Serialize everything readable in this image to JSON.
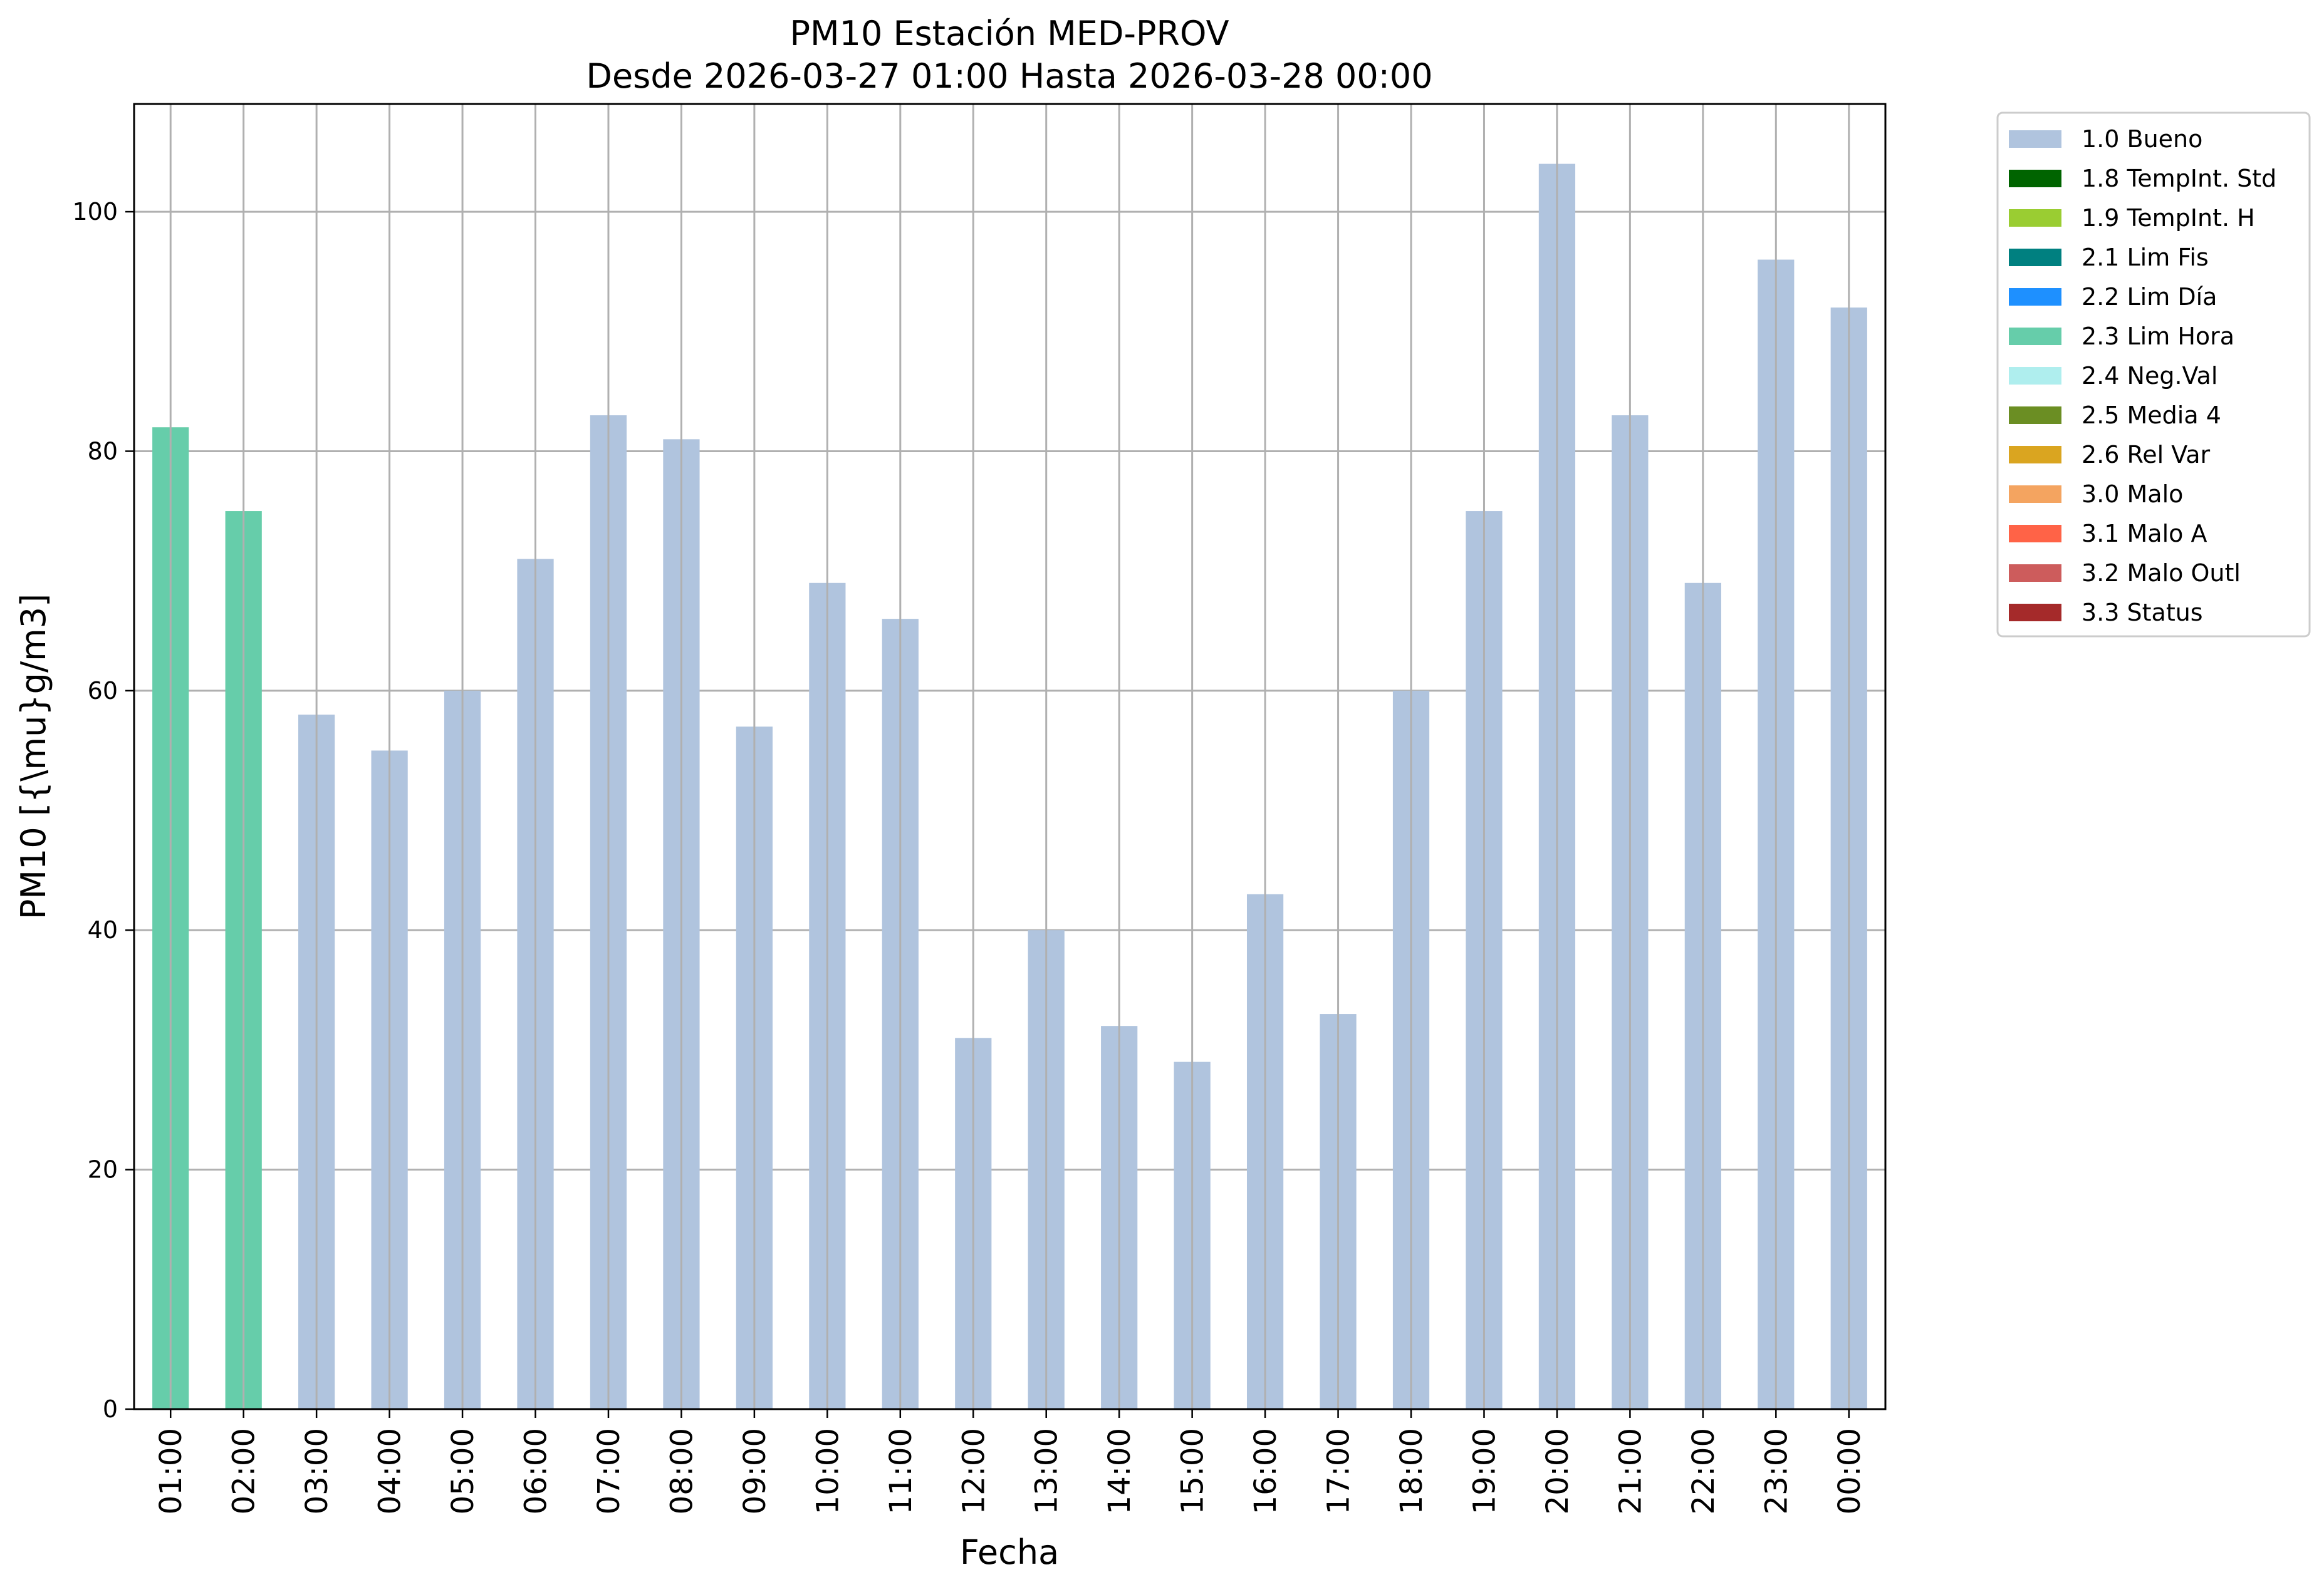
{
  "chart_data": {
    "type": "bar",
    "title": "PM10 Estación MED-PROV",
    "subtitle": "Desde 2026-03-27 01:00 Hasta 2026-03-28 00:00",
    "xlabel": "Fecha",
    "ylabel": "PM10 [{\\mu}g/m3]",
    "ylim": [
      0,
      109
    ],
    "yticks": [
      0,
      20,
      40,
      60,
      80,
      100
    ],
    "grid": true,
    "legend_position": "outside-top-right",
    "categories": [
      "01:00",
      "02:00",
      "03:00",
      "04:00",
      "05:00",
      "06:00",
      "07:00",
      "08:00",
      "09:00",
      "10:00",
      "11:00",
      "12:00",
      "13:00",
      "14:00",
      "15:00",
      "16:00",
      "17:00",
      "18:00",
      "19:00",
      "20:00",
      "21:00",
      "22:00",
      "23:00",
      "00:00"
    ],
    "values": [
      82,
      75,
      58,
      55,
      60,
      71,
      83,
      81,
      57,
      69,
      66,
      31,
      40,
      32,
      29,
      43,
      33,
      60,
      75,
      104,
      83,
      69,
      96,
      92
    ],
    "flags": [
      "2.3 Lim Hora",
      "2.3 Lim Hora",
      "1.0 Bueno",
      "1.0 Bueno",
      "1.0 Bueno",
      "1.0 Bueno",
      "1.0 Bueno",
      "1.0 Bueno",
      "1.0 Bueno",
      "1.0 Bueno",
      "1.0 Bueno",
      "1.0 Bueno",
      "1.0 Bueno",
      "1.0 Bueno",
      "1.0 Bueno",
      "1.0 Bueno",
      "1.0 Bueno",
      "1.0 Bueno",
      "1.0 Bueno",
      "1.0 Bueno",
      "1.0 Bueno",
      "1.0 Bueno",
      "1.0 Bueno",
      "1.0 Bueno"
    ],
    "legend": [
      {
        "label": "1.0 Bueno",
        "color": "#b0c4de"
      },
      {
        "label": "1.8 TempInt. Std",
        "color": "#006400"
      },
      {
        "label": "1.9 TempInt. H",
        "color": "#9acd32"
      },
      {
        "label": "2.1 Lim Fis",
        "color": "#008080"
      },
      {
        "label": "2.2 Lim Día",
        "color": "#1e90ff"
      },
      {
        "label": "2.3 Lim Hora",
        "color": "#66cdaa"
      },
      {
        "label": "2.4 Neg.Val",
        "color": "#afeeee"
      },
      {
        "label": "2.5 Media 4",
        "color": "#6b8e23"
      },
      {
        "label": "2.6 Rel Var",
        "color": "#daa520"
      },
      {
        "label": "3.0 Malo",
        "color": "#f4a460"
      },
      {
        "label": "3.1 Malo A",
        "color": "#ff6347"
      },
      {
        "label": "3.2 Malo Outl",
        "color": "#cd5c5c"
      },
      {
        "label": "3.3 Status",
        "color": "#a52a2a"
      }
    ]
  }
}
